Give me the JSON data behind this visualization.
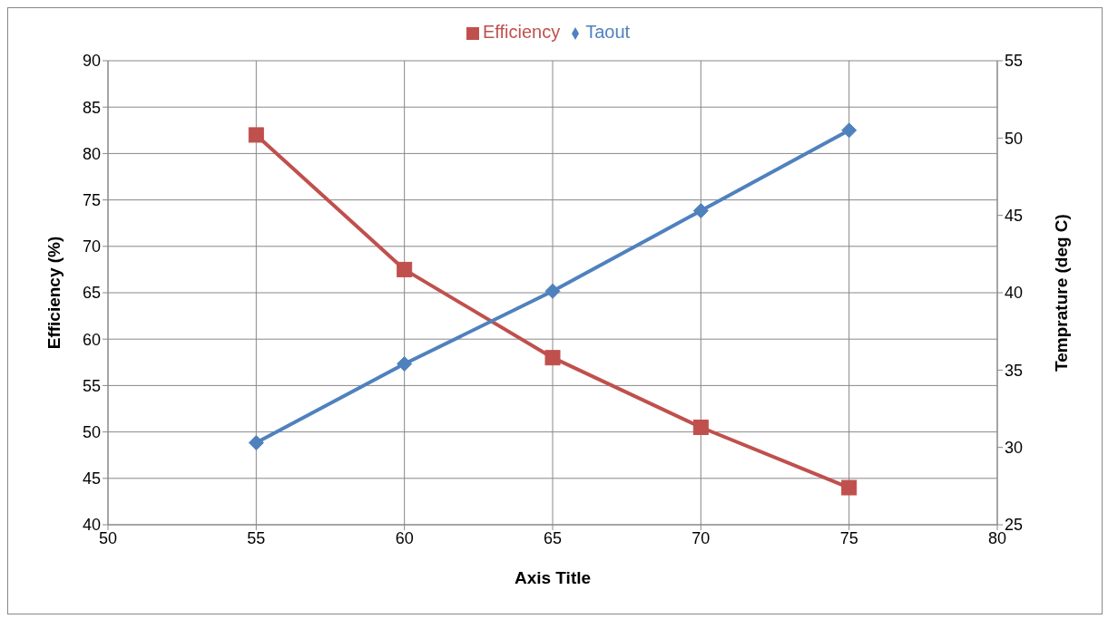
{
  "chart_data": {
    "type": "line",
    "x": [
      55,
      60,
      65,
      70,
      75
    ],
    "xlabel": "Axis Title",
    "ylabel": "Efficiency (%)",
    "y2label": "Temprature (deg C)",
    "series": [
      {
        "name": "Efficiency",
        "color": "#c0504d",
        "values": [
          82,
          67.5,
          58,
          50.5,
          44
        ],
        "marker": "square"
      },
      {
        "name": "Taout",
        "color": "#4f81bd",
        "values": [
          30.3,
          35.4,
          40.1,
          45.3,
          50.5
        ],
        "axis": "y2",
        "marker": "diamond"
      }
    ],
    "xlim": [
      50,
      80
    ],
    "xticks": [
      50,
      55,
      60,
      65,
      70,
      75,
      80
    ],
    "ylim": [
      40,
      90
    ],
    "yticks": [
      40,
      45,
      50,
      55,
      60,
      65,
      70,
      75,
      80,
      85,
      90
    ],
    "y2lim": [
      25,
      55
    ],
    "y2ticks": [
      25,
      30,
      35,
      40,
      45,
      50,
      55
    ],
    "grid": true,
    "legend": "top",
    "line_style": "solid"
  }
}
